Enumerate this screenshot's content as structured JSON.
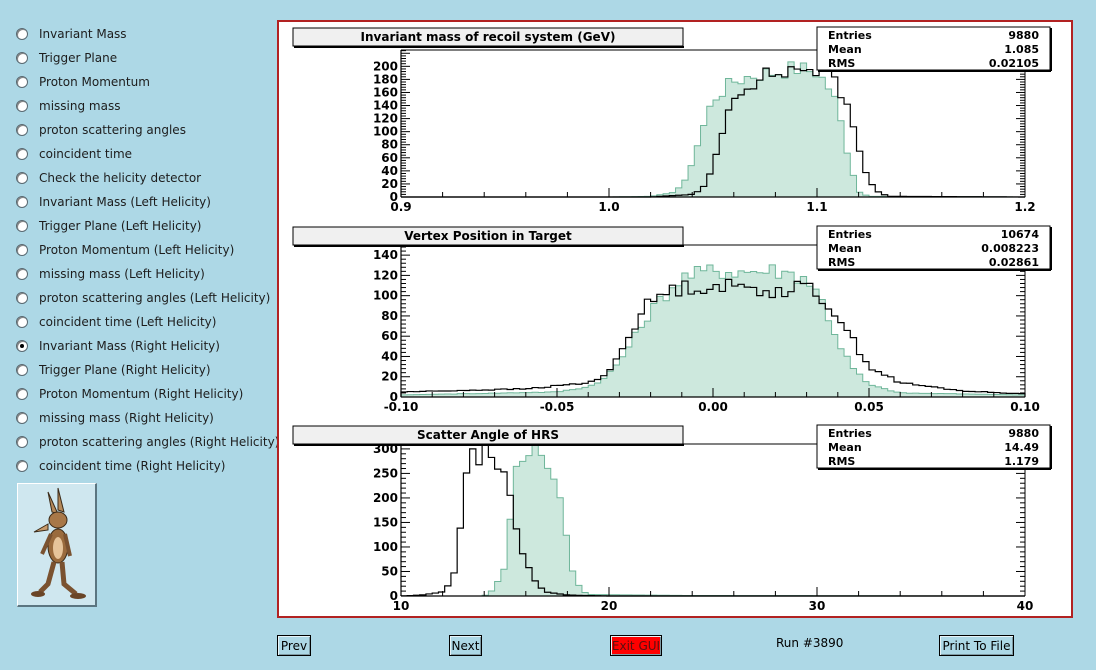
{
  "radio_options": [
    {
      "label": "Invariant Mass",
      "selected": false
    },
    {
      "label": "Trigger Plane",
      "selected": false
    },
    {
      "label": "Proton Momentum",
      "selected": false
    },
    {
      "label": "missing mass",
      "selected": false
    },
    {
      "label": "proton scattering angles",
      "selected": false
    },
    {
      "label": "coincident time",
      "selected": false
    },
    {
      "label": "Check the helicity detector",
      "selected": false
    },
    {
      "label": "Invariant Mass (Left Helicity)",
      "selected": false
    },
    {
      "label": "Trigger Plane (Left Helicity)",
      "selected": false
    },
    {
      "label": "Proton Momentum (Left Helicity)",
      "selected": false
    },
    {
      "label": "missing mass (Left Helicity)",
      "selected": false
    },
    {
      "label": "proton scattering angles (Left Helicity)",
      "selected": false
    },
    {
      "label": "coincident time (Left Helicity)",
      "selected": false
    },
    {
      "label": "Invariant Mass (Right Helicity)",
      "selected": true
    },
    {
      "label": "Trigger Plane (Right Helicity)",
      "selected": false
    },
    {
      "label": "Proton Momentum (Right Helicity)",
      "selected": false
    },
    {
      "label": "missing mass (Right Helicity)",
      "selected": false
    },
    {
      "label": "proton scattering angles (Right Helicity)",
      "selected": false
    },
    {
      "label": "coincident time (Right Helicity)",
      "selected": false
    }
  ],
  "buttons": {
    "prev": "Prev",
    "next": "Next",
    "exit": "Exit GUI",
    "print": "Print To File"
  },
  "run_label": "Run #3890",
  "colors": {
    "background": "#add8e6",
    "canvas_border": "#b22222",
    "filled_histogram": "#cde8dd",
    "filled_histogram_line": "#6fb69a",
    "outline_histogram": "#000000",
    "exit_button": "#ff0000"
  },
  "chart_data": [
    {
      "type": "histogram",
      "title": "Invariant mass of recoil system (GeV)",
      "stats": {
        "Entries": "9880",
        "Mean": "1.085",
        "RMS": "0.02105"
      },
      "xlim": [
        0.9,
        1.2
      ],
      "ylim": [
        0,
        225
      ],
      "x_ticks": [
        "0.9",
        "1.0",
        "1.1",
        "1.2"
      ],
      "y_ticks": [
        "0",
        "20",
        "40",
        "60",
        "80",
        "100",
        "120",
        "140",
        "160",
        "180",
        "200"
      ],
      "series": [
        {
          "style": "filled",
          "points": [
            [
              0.9,
              0
            ],
            [
              1.0,
              0
            ],
            [
              1.02,
              1
            ],
            [
              1.03,
              6
            ],
            [
              1.036,
              20
            ],
            [
              1.04,
              55
            ],
            [
              1.045,
              105
            ],
            [
              1.05,
              150
            ],
            [
              1.06,
              178
            ],
            [
              1.07,
              188
            ],
            [
              1.08,
              192
            ],
            [
              1.09,
              198
            ],
            [
              1.1,
              192
            ],
            [
              1.105,
              172
            ],
            [
              1.11,
              140
            ],
            [
              1.113,
              90
            ],
            [
              1.117,
              40
            ],
            [
              1.12,
              8
            ],
            [
              1.125,
              1
            ],
            [
              1.2,
              0
            ]
          ]
        },
        {
          "style": "outline",
          "points": [
            [
              0.9,
              0
            ],
            [
              1.02,
              0
            ],
            [
              1.03,
              2
            ],
            [
              1.04,
              4
            ],
            [
              1.045,
              12
            ],
            [
              1.05,
              45
            ],
            [
              1.055,
              110
            ],
            [
              1.06,
              155
            ],
            [
              1.065,
              170
            ],
            [
              1.075,
              185
            ],
            [
              1.085,
              192
            ],
            [
              1.095,
              198
            ],
            [
              1.105,
              192
            ],
            [
              1.11,
              172
            ],
            [
              1.115,
              135
            ],
            [
              1.12,
              75
            ],
            [
              1.125,
              25
            ],
            [
              1.13,
              6
            ],
            [
              1.135,
              1
            ],
            [
              1.2,
              0
            ]
          ]
        }
      ]
    },
    {
      "type": "histogram",
      "title": "Vertex Position in Target",
      "stats": {
        "Entries": "10674",
        "Mean": "0.008223",
        "RMS": "0.02861"
      },
      "xlim": [
        -0.1,
        0.1
      ],
      "ylim": [
        0,
        150
      ],
      "x_ticks": [
        "-0.10",
        "-0.05",
        "0.00",
        "0.05",
        "0.10"
      ],
      "y_ticks": [
        "0",
        "20",
        "40",
        "60",
        "80",
        "100",
        "120",
        "140"
      ],
      "series": [
        {
          "style": "filled",
          "points": [
            [
              -0.1,
              2
            ],
            [
              -0.05,
              5
            ],
            [
              -0.04,
              10
            ],
            [
              -0.035,
              18
            ],
            [
              -0.03,
              35
            ],
            [
              -0.025,
              60
            ],
            [
              -0.02,
              85
            ],
            [
              -0.015,
              102
            ],
            [
              -0.01,
              118
            ],
            [
              0.0,
              125
            ],
            [
              0.01,
              124
            ],
            [
              0.02,
              125
            ],
            [
              0.03,
              118
            ],
            [
              0.035,
              95
            ],
            [
              0.04,
              55
            ],
            [
              0.045,
              28
            ],
            [
              0.05,
              12
            ],
            [
              0.06,
              4
            ],
            [
              0.1,
              2
            ]
          ]
        },
        {
          "style": "outline",
          "points": [
            [
              -0.1,
              5
            ],
            [
              -0.06,
              8
            ],
            [
              -0.04,
              14
            ],
            [
              -0.035,
              20
            ],
            [
              -0.03,
              42
            ],
            [
              -0.025,
              72
            ],
            [
              -0.02,
              95
            ],
            [
              -0.015,
              103
            ],
            [
              -0.01,
              108
            ],
            [
              0.0,
              110
            ],
            [
              0.01,
              108
            ],
            [
              0.02,
              105
            ],
            [
              0.03,
              108
            ],
            [
              0.035,
              98
            ],
            [
              0.04,
              80
            ],
            [
              0.045,
              55
            ],
            [
              0.05,
              30
            ],
            [
              0.06,
              14
            ],
            [
              0.08,
              6
            ],
            [
              0.1,
              3
            ]
          ]
        }
      ]
    },
    {
      "type": "histogram",
      "title": "Scatter Angle of HRS",
      "stats": {
        "Entries": "9880",
        "Mean": "14.49",
        "RMS": "1.179"
      },
      "xlim": [
        10,
        40
      ],
      "ylim": [
        0,
        310
      ],
      "x_ticks": [
        "10",
        "20",
        "30",
        "40"
      ],
      "y_ticks": [
        "0",
        "50",
        "100",
        "150",
        "200",
        "250",
        "300"
      ],
      "series": [
        {
          "style": "filled",
          "points": [
            [
              10,
              0
            ],
            [
              14,
              0
            ],
            [
              14.5,
              15
            ],
            [
              15,
              60
            ],
            [
              15.3,
              170
            ],
            [
              15.6,
              280
            ],
            [
              16.0,
              300
            ],
            [
              16.5,
              300
            ],
            [
              17.0,
              280
            ],
            [
              17.5,
              230
            ],
            [
              17.8,
              150
            ],
            [
              18.2,
              60
            ],
            [
              18.6,
              15
            ],
            [
              19,
              3
            ],
            [
              24,
              1
            ],
            [
              40,
              0
            ]
          ]
        },
        {
          "style": "outline",
          "points": [
            [
              10,
              0
            ],
            [
              11,
              2
            ],
            [
              12,
              8
            ],
            [
              12.5,
              35
            ],
            [
              12.8,
              120
            ],
            [
              13.1,
              230
            ],
            [
              13.4,
              280
            ],
            [
              14,
              290
            ],
            [
              14.6,
              285
            ],
            [
              15.0,
              230
            ],
            [
              15.3,
              190
            ],
            [
              15.6,
              120
            ],
            [
              16.0,
              70
            ],
            [
              16.5,
              25
            ],
            [
              17,
              8
            ],
            [
              18,
              2
            ],
            [
              20,
              0
            ],
            [
              40,
              0
            ]
          ]
        }
      ]
    }
  ]
}
